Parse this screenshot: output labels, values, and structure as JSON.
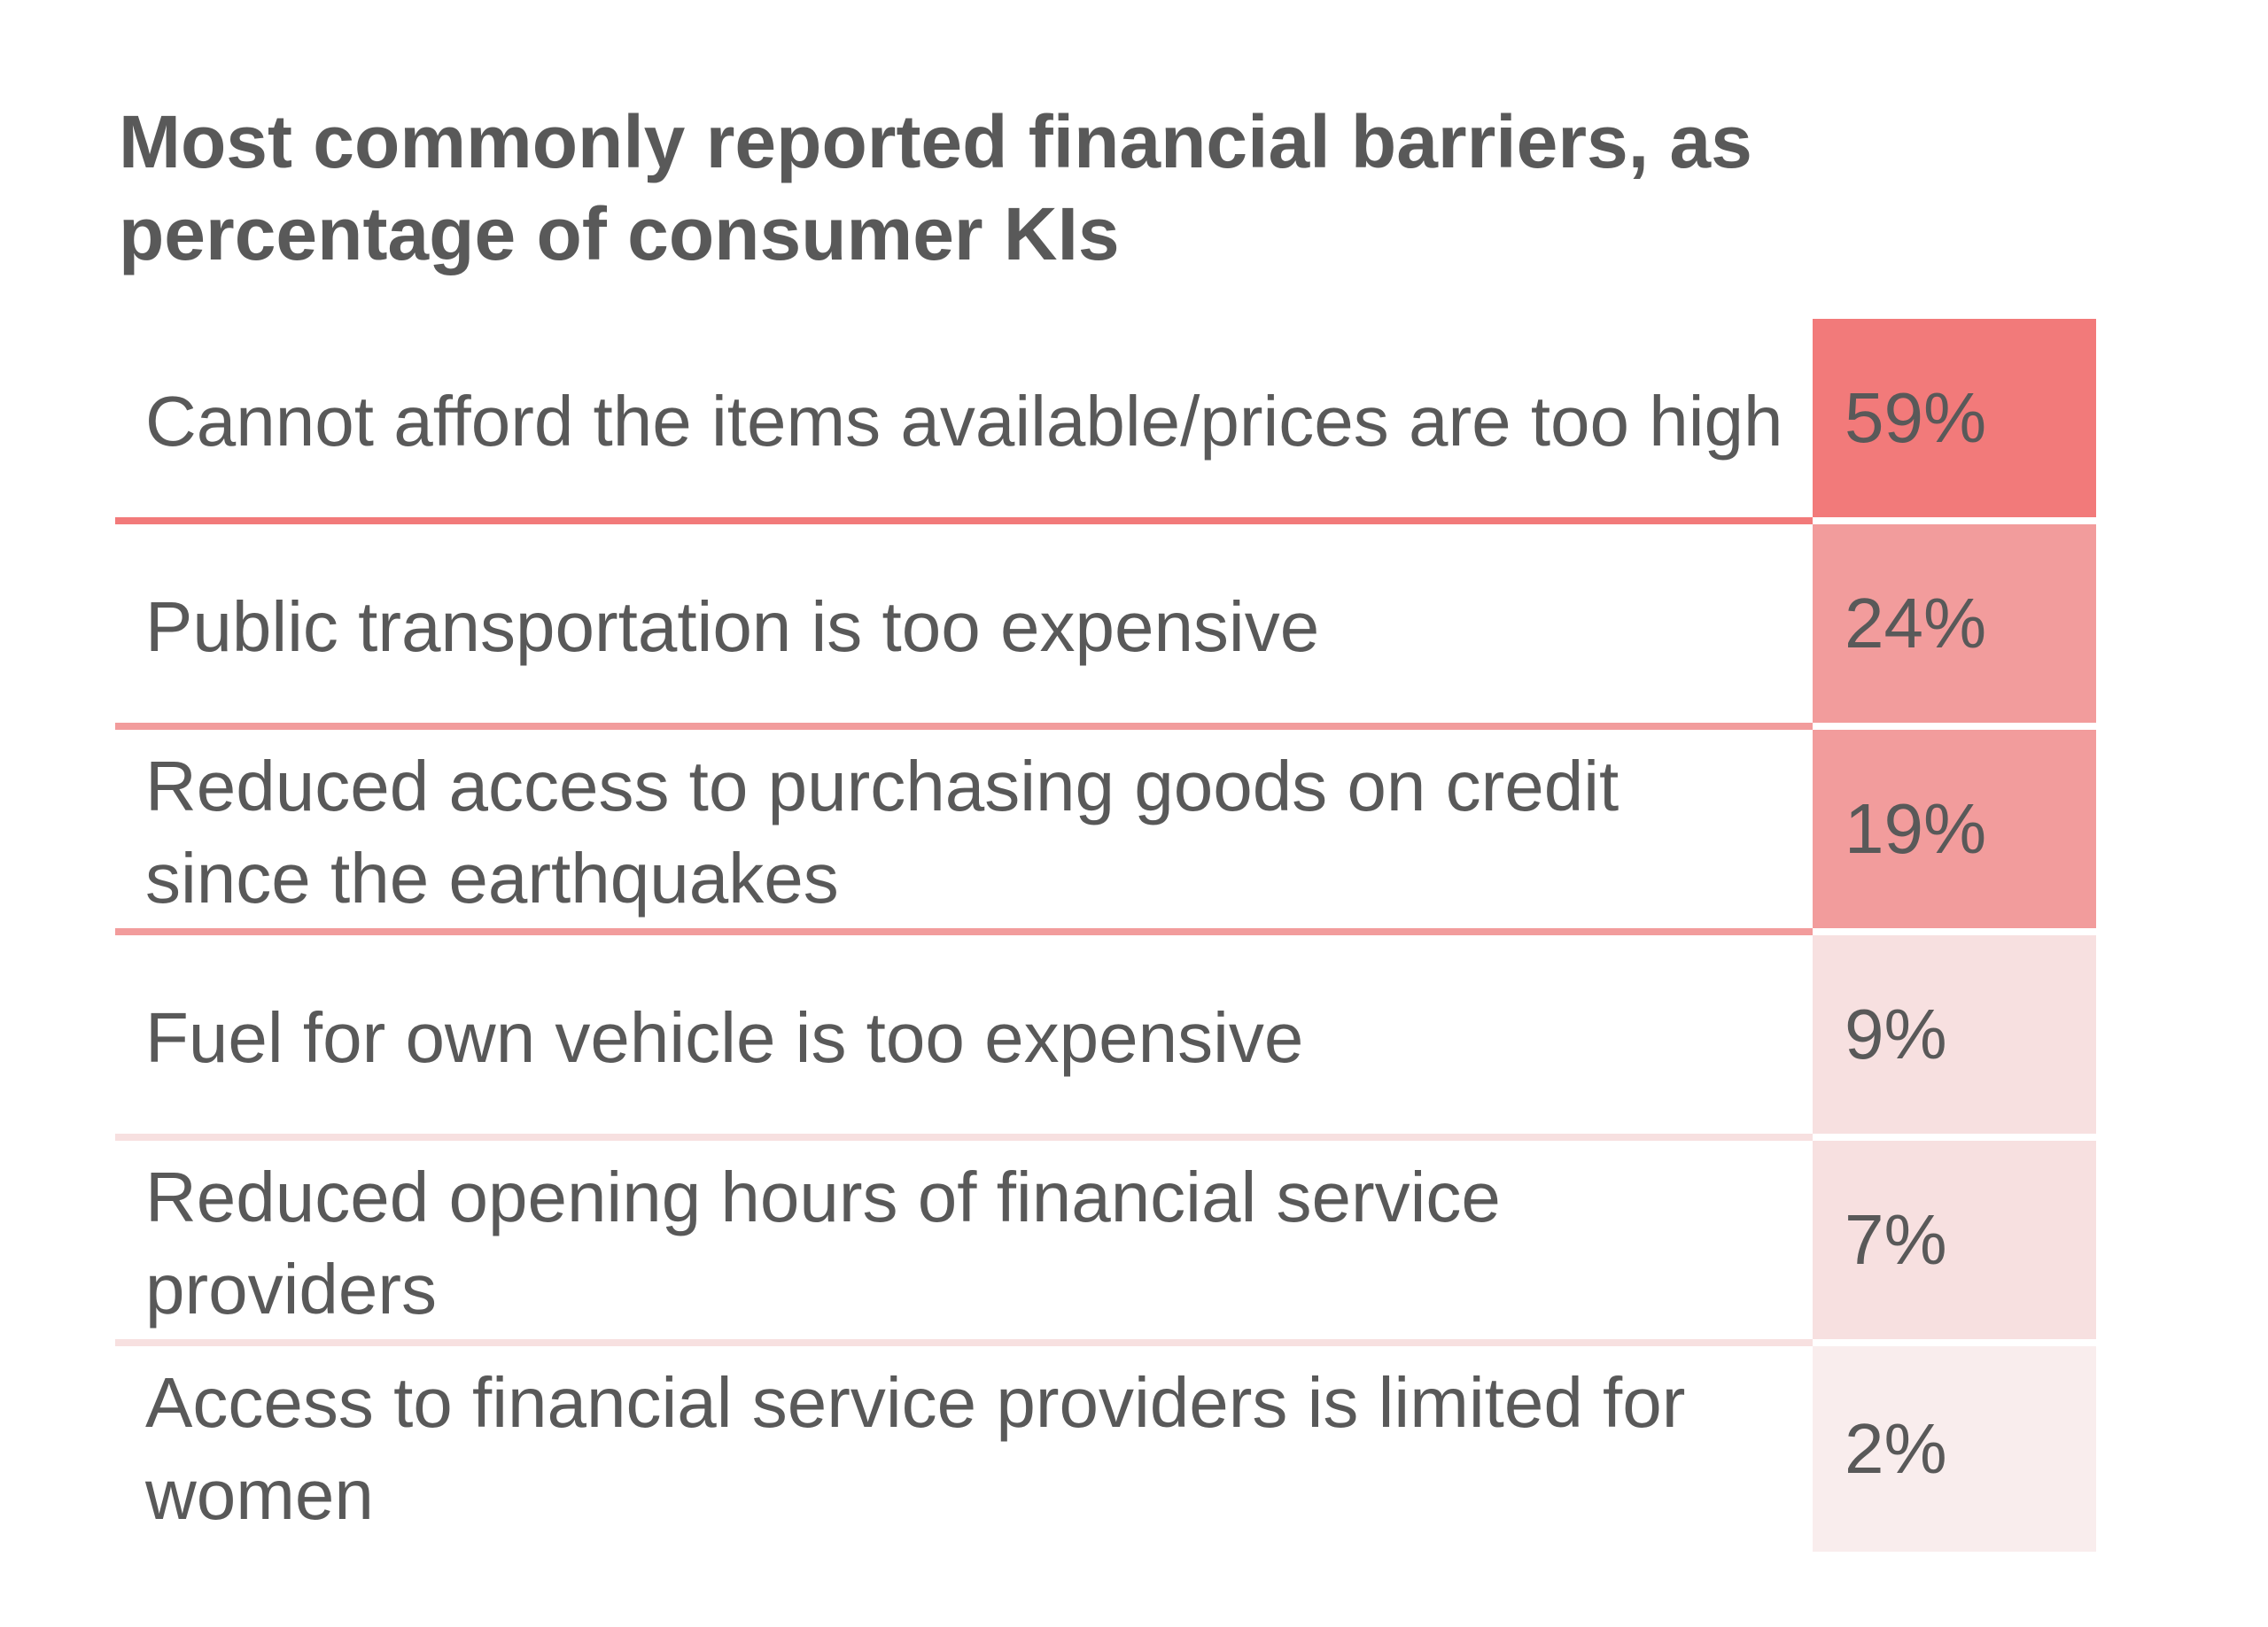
{
  "chart_data": {
    "type": "table",
    "title": "Most commonly reported financial barriers",
    "subtitle": ", as percentage of consumer KIs",
    "categories": [
      "Cannot afford the items available/prices are too high",
      "Public transportation is too expensive",
      "Reduced access to purchasing goods on credit since the earthquakes",
      "Fuel for own vehicle is too expensive",
      "Reduced opening hours of financial service providers",
      "Access to financial service providers is limited for women"
    ],
    "values": [
      59,
      24,
      19,
      9,
      7,
      2
    ],
    "value_labels": [
      "59%",
      "24%",
      "19%",
      "9%",
      "7%",
      "2%"
    ],
    "cell_colors": [
      "#f27a7a",
      "#f29c9c",
      "#f29c9c",
      "#f7e0e0",
      "#f7e0e0",
      "#f9eded"
    ],
    "rule_colors": [
      "#f27a7a",
      "#f29c9c",
      "#f29c9c",
      "#f7e0e0",
      "#f7e0e0",
      "#ffffff"
    ],
    "unit": "%"
  }
}
